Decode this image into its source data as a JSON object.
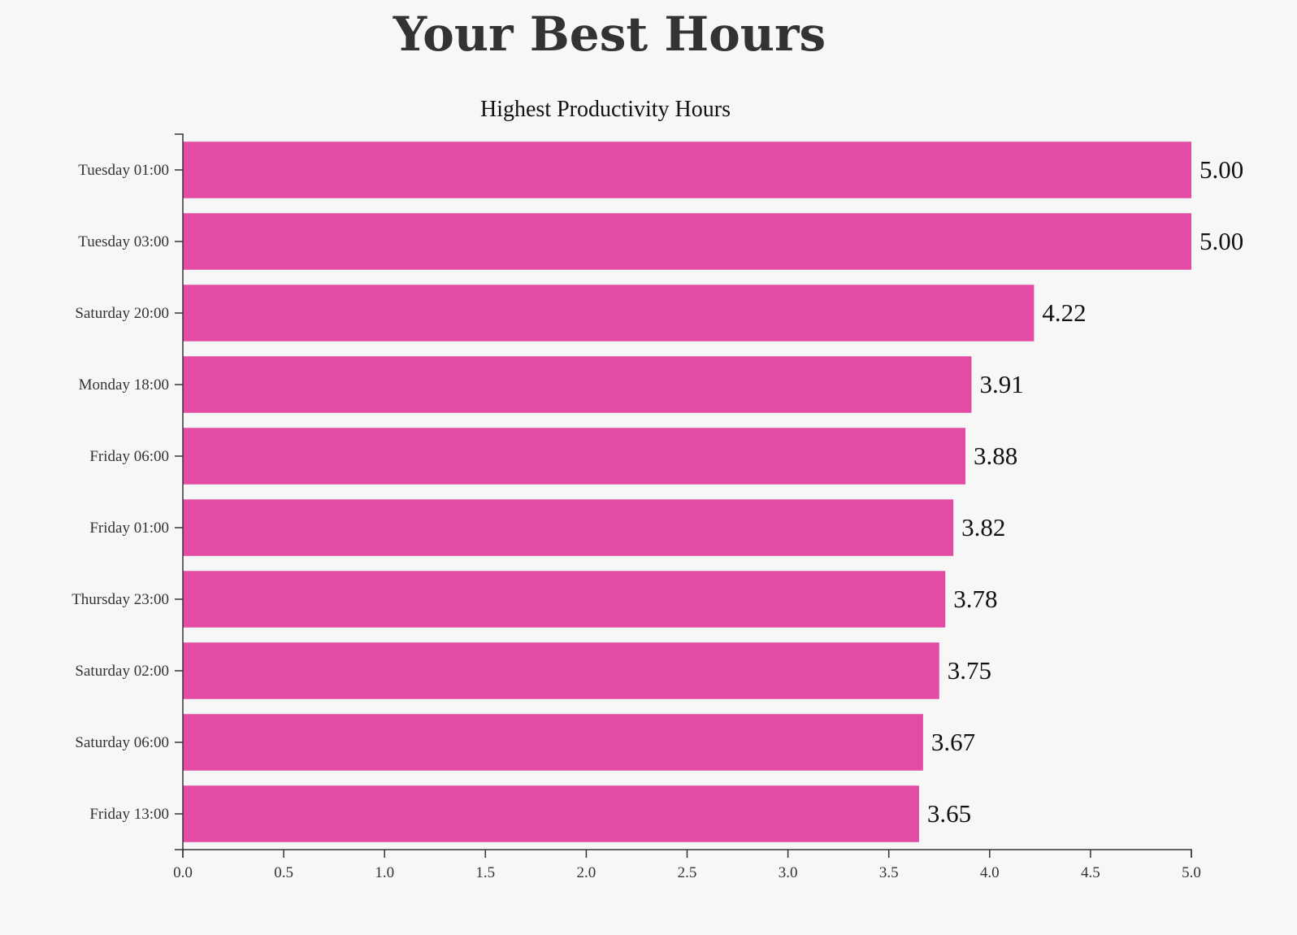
{
  "header": {
    "title": "Your Best Hours"
  },
  "colors": {
    "bar": "#e34ba4",
    "axis": "#333333",
    "background": "#f7f7f7"
  },
  "chart_data": {
    "type": "bar",
    "orientation": "horizontal",
    "title": "Highest Productivity Hours",
    "xlabel": "",
    "ylabel": "",
    "categories": [
      "Tuesday 01:00",
      "Tuesday 03:00",
      "Saturday 20:00",
      "Monday 18:00",
      "Friday 06:00",
      "Friday 01:00",
      "Thursday 23:00",
      "Saturday 02:00",
      "Saturday 06:00",
      "Friday 13:00"
    ],
    "values": [
      5.0,
      5.0,
      4.22,
      3.91,
      3.88,
      3.82,
      3.78,
      3.75,
      3.67,
      3.65
    ],
    "value_labels": [
      "5.00",
      "5.00",
      "4.22",
      "3.91",
      "3.88",
      "3.82",
      "3.78",
      "3.75",
      "3.67",
      "3.65"
    ],
    "xlim": [
      0,
      5
    ],
    "xticks": [
      0.0,
      0.5,
      1.0,
      1.5,
      2.0,
      2.5,
      3.0,
      3.5,
      4.0,
      4.5,
      5.0
    ],
    "xtick_labels": [
      "0.0",
      "0.5",
      "1.0",
      "1.5",
      "2.0",
      "2.5",
      "3.0",
      "3.5",
      "4.0",
      "4.5",
      "5.0"
    ],
    "grid": false,
    "legend": "none"
  }
}
